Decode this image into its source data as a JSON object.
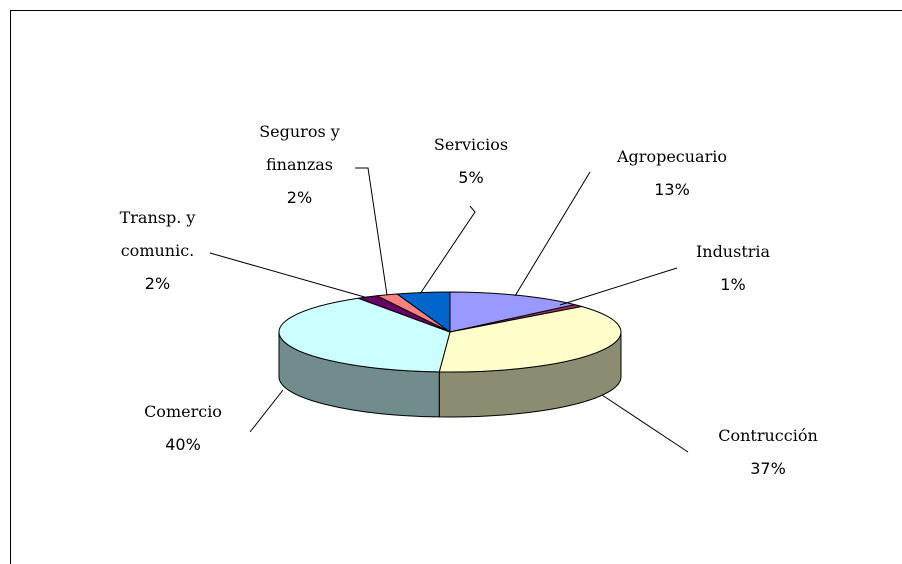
{
  "chart_data": {
    "type": "pie3d",
    "categories": [
      "Agropecuario",
      "Industria",
      "Contrucción",
      "Comercio",
      "Transp. y comunic.",
      "Seguros y finanzas",
      "Servicios"
    ],
    "values": [
      13,
      1,
      37,
      40,
      2,
      2,
      5
    ],
    "value_labels": [
      "13%",
      "1%",
      "37%",
      "40%",
      "2%",
      "2%",
      "5%"
    ],
    "colors": [
      "#9999ff",
      "#993366",
      "#ffffcc",
      "#ccffff",
      "#660066",
      "#ff8080",
      "#0066cc"
    ]
  }
}
